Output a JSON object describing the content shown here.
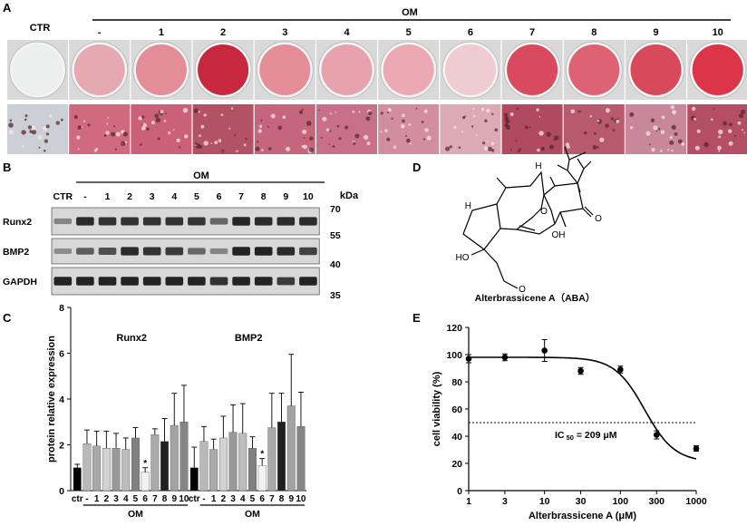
{
  "panelA": {
    "letter": "A",
    "ctr_label": "CTR",
    "om_label": "OM",
    "columns": [
      "-",
      "1",
      "2",
      "3",
      "4",
      "5",
      "6",
      "7",
      "8",
      "9",
      "10"
    ],
    "dish_colors": [
      "#ecefee",
      "#e6a8b1",
      "#e38d99",
      "#c8283f",
      "#e58e98",
      "#e7a2ad",
      "#eba9b3",
      "#efcbd2",
      "#d94a5e",
      "#dd6374",
      "#d9495c",
      "#dc3448"
    ],
    "tile_colors": [
      "#ccd0d6",
      "#d06a7e",
      "#cb6178",
      "#b35165",
      "#c6667d",
      "#c8708a",
      "#d28e9e",
      "#dbaab5",
      "#b04a60",
      "#b85a6e",
      "#c8879a",
      "#b44e64"
    ]
  },
  "panelB": {
    "letter": "B",
    "om_label": "OM",
    "lanes": [
      "CTR",
      "-",
      "1",
      "2",
      "3",
      "4",
      "5",
      "6",
      "7",
      "8",
      "9",
      "10"
    ],
    "kda_label": "kDa",
    "blots": [
      {
        "label": "Runx2",
        "marker_top": "70",
        "marker_bottom": "55",
        "intensity": [
          0.25,
          0.85,
          0.8,
          0.8,
          0.8,
          0.8,
          0.78,
          0.45,
          0.88,
          0.85,
          0.85,
          0.85
        ]
      },
      {
        "label": "BMP2",
        "marker_top": "",
        "marker_bottom": "40",
        "intensity": [
          0.2,
          0.5,
          0.6,
          0.85,
          0.8,
          0.75,
          0.45,
          0.25,
          0.9,
          0.9,
          0.85,
          0.7
        ]
      },
      {
        "label": "GAPDH",
        "marker_top": "",
        "marker_bottom": "35",
        "intensity": [
          0.9,
          0.9,
          0.9,
          0.9,
          0.9,
          0.9,
          0.9,
          0.8,
          0.9,
          0.9,
          0.75,
          0.9
        ]
      }
    ]
  },
  "panelC": {
    "letter": "C",
    "chart_data": {
      "type": "bar",
      "ylabel": "protein relative expression",
      "ylim": [
        0,
        8
      ],
      "yticks": [
        0,
        2,
        4,
        6,
        8
      ],
      "groups": [
        {
          "name": "Runx2",
          "categories": [
            "ctr",
            "-",
            "1",
            "2",
            "3",
            "4",
            "5",
            "6",
            "7",
            "8",
            "9",
            "10"
          ],
          "values": [
            1.0,
            2.05,
            1.95,
            1.85,
            1.85,
            1.8,
            2.3,
            0.8,
            2.45,
            2.15,
            2.85,
            3.0
          ],
          "errors": [
            0.15,
            0.6,
            0.65,
            0.75,
            0.65,
            0.5,
            0.45,
            0.2,
            0.25,
            1.0,
            1.4,
            1.6
          ],
          "sig": "*",
          "sig_index": 7,
          "om_label": "OM"
        },
        {
          "name": "BMP2",
          "categories": [
            "ctr",
            "-",
            "1",
            "2",
            "3",
            "4",
            "5",
            "6",
            "7",
            "8",
            "9",
            "10"
          ],
          "values": [
            1.0,
            2.15,
            1.8,
            2.3,
            2.55,
            2.5,
            1.85,
            1.1,
            2.75,
            3.0,
            3.7,
            2.8
          ],
          "errors": [
            0.9,
            0.65,
            0.45,
            0.95,
            1.2,
            1.3,
            0.5,
            0.3,
            1.5,
            1.25,
            2.25,
            1.5
          ],
          "sig": "*",
          "sig_index": 7,
          "om_label": "OM"
        }
      ],
      "bar_colors": [
        "#000000",
        "#b9b9b9",
        "#a9a9a9",
        "#d2d2d2",
        "#999999",
        "#bdbdbd",
        "#808080",
        "#f2f2f2",
        "#aaaaaa",
        "#202020",
        "#a3a3a3",
        "#858585"
      ]
    }
  },
  "panelD": {
    "letter": "D",
    "atom_labels": {
      "h_top": "H",
      "h_left": "H",
      "o_ring": "O",
      "o_ketone": "O",
      "oh": "OH",
      "ho": "HO",
      "o_ether": "O"
    },
    "caption": "Alterbrassicene A（ABA）"
  },
  "panelE": {
    "letter": "E",
    "chart_data": {
      "type": "scatter",
      "xlabel": "Alterbrassicene A (μM)",
      "ylabel": "cell viability (%)",
      "x_scale": "log",
      "xlim": [
        1,
        1000
      ],
      "ylim": [
        0,
        120
      ],
      "xticks": [
        1,
        3,
        10,
        30,
        100,
        300,
        1000
      ],
      "xtick_labels": [
        "1",
        "3",
        "10",
        "30",
        "100",
        "300",
        "1000"
      ],
      "yticks": [
        0,
        20,
        40,
        60,
        80,
        100,
        120
      ],
      "points": [
        {
          "x": 1,
          "y": 97,
          "err": 3
        },
        {
          "x": 3,
          "y": 98,
          "err": 2.5
        },
        {
          "x": 10,
          "y": 103,
          "err": 8
        },
        {
          "x": 30,
          "y": 88,
          "err": 2.5
        },
        {
          "x": 100,
          "y": 89,
          "err": 2.5
        },
        {
          "x": 300,
          "y": 41,
          "err": 3
        },
        {
          "x": 1000,
          "y": 31,
          "err": 2
        }
      ],
      "fit": {
        "top": 98,
        "bottom": 21,
        "ic50": 209,
        "hill": 2.2
      },
      "reference_line": 50,
      "annotation": {
        "pre": "IC",
        "sub": "50",
        "post": "= 209 μM"
      }
    }
  }
}
